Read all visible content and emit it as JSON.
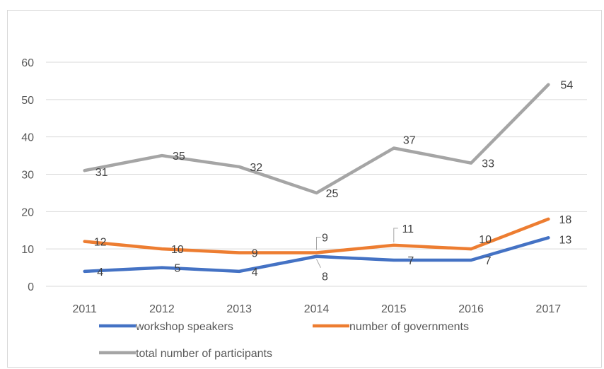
{
  "chart_data": {
    "type": "line",
    "title": "",
    "xlabel": "",
    "ylabel": "",
    "categories": [
      "2011",
      "2012",
      "2013",
      "2014",
      "2015",
      "2016",
      "2017"
    ],
    "ylim": [
      0,
      60
    ],
    "yticks": [
      "0",
      "10",
      "20",
      "30",
      "40",
      "50",
      "60"
    ],
    "grid": "horizontal",
    "legend_position": "bottom",
    "series": [
      {
        "name": "workshop speakers",
        "color": "#4472c4",
        "values": [
          4,
          5,
          4,
          8,
          7,
          7,
          13
        ],
        "labels": [
          "4",
          "5",
          "4",
          "8",
          "7",
          "7",
          "13"
        ]
      },
      {
        "name": "number of governments",
        "color": "#ed7d31",
        "values": [
          12,
          10,
          9,
          9,
          11,
          10,
          18
        ],
        "labels": [
          "12",
          "10",
          "9",
          "9",
          "11",
          "10",
          "18"
        ]
      },
      {
        "name": "total number of participants",
        "color": "#a5a5a5",
        "values": [
          31,
          35,
          32,
          25,
          37,
          33,
          54
        ],
        "labels": [
          "31",
          "35",
          "32",
          "25",
          "37",
          "33",
          "54"
        ]
      }
    ]
  }
}
